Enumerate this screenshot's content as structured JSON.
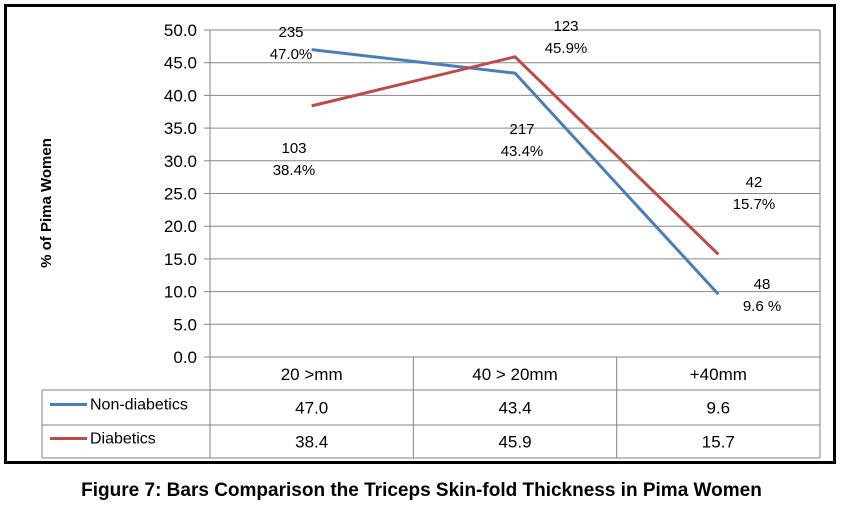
{
  "caption": "Figure 7: Bars Comparison the Triceps Skin-fold Thickness in Pima Women",
  "chart_data": {
    "type": "line",
    "title": "",
    "xlabel": "",
    "ylabel": "% of Pima Women",
    "ylim": [
      0,
      50
    ],
    "yticks": [
      "0.0",
      "5.0",
      "10.0",
      "15.0",
      "20.0",
      "25.0",
      "30.0",
      "35.0",
      "40.0",
      "45.0",
      "50.0"
    ],
    "grid": true,
    "legend": "data-table-left",
    "categories": [
      "20 >mm",
      "40 > 20mm",
      "+40mm"
    ],
    "series": [
      {
        "name": "Non-diabetics",
        "color": "#4a7ebb",
        "values": [
          47.0,
          43.4,
          9.6
        ],
        "table_values": [
          "47.0",
          "43.4",
          "9.6"
        ],
        "annotations": [
          {
            "count": "235",
            "pct": "47.0%"
          },
          {
            "count": "217",
            "pct": "43.4%"
          },
          {
            "count": "48",
            "pct": "9.6 %"
          }
        ]
      },
      {
        "name": "Diabetics",
        "color": "#be4b48",
        "values": [
          38.4,
          45.9,
          15.7
        ],
        "table_values": [
          "38.4",
          "45.9",
          "15.7"
        ],
        "annotations": [
          {
            "count": "103",
            "pct": "38.4%"
          },
          {
            "count": "123",
            "pct": "45.9%"
          },
          {
            "count": "42",
            "pct": "15.7%"
          }
        ]
      }
    ]
  }
}
